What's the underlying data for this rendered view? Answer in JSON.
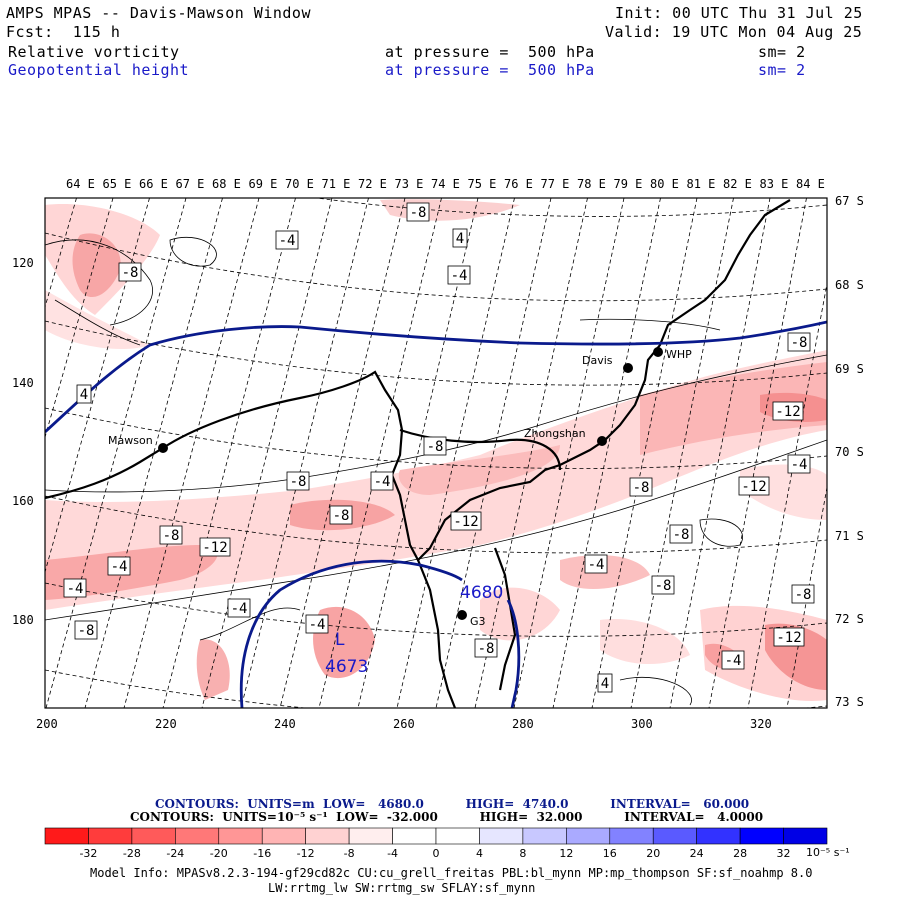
{
  "header": {
    "title": "AMPS MPAS -- Davis-Mawson Window",
    "forecast": "Fcst:  115 h",
    "init": "Init: 00 UTC Thu 31 Jul 25",
    "valid": "Valid: 19 UTC Mon 04 Aug 25",
    "field1": {
      "name": "Relative vorticity",
      "level": "at pressure =  500 hPa",
      "smooth": "sm= 2"
    },
    "field2": {
      "name": "Geopotential height",
      "level": "at pressure =  500 hPa",
      "smooth": "sm= 2"
    }
  },
  "map": {
    "top_lon_labels": [
      "64 E",
      "65 E",
      "66 E",
      "67 E",
      "68 E",
      "69 E",
      "70 E",
      "71 E",
      "72 E",
      "73 E",
      "74 E",
      "75 E",
      "76 E",
      "77 E",
      "78 E",
      "79 E",
      "80 E",
      "81 E",
      "82 E",
      "83 E",
      "84 E"
    ],
    "right_lat_labels": [
      "67 S",
      "68 S",
      "69 S",
      "70 S",
      "71 S",
      "72 S",
      "73 S"
    ],
    "left_grid_labels": [
      "120",
      "140",
      "160",
      "180"
    ],
    "bottom_grid_labels": [
      "200",
      "220",
      "240",
      "260",
      "280",
      "300",
      "320"
    ],
    "stations": [
      {
        "name": "Davis"
      },
      {
        "name": "WHP"
      },
      {
        "name": "Mawson"
      },
      {
        "name": "Zhongshan"
      },
      {
        "name": "G3"
      }
    ],
    "height_labels": [
      {
        "text": "4680"
      },
      {
        "text": "L"
      },
      {
        "text": "4673"
      }
    ],
    "vorticity_labels": [
      "-8",
      "-4",
      "4",
      "-4",
      "-8",
      "4",
      "-8",
      "-12",
      "-8",
      "-4",
      "-8",
      "-4",
      "-8",
      "-12",
      "-8",
      "-12",
      "-8",
      "-12",
      "-8",
      "-4",
      "-4",
      "-4",
      "-8",
      "-8",
      "-4",
      "-4",
      "-8",
      "-12",
      "-8",
      "-4",
      "4"
    ]
  },
  "legend": {
    "contours_height": "CONTOURS:  UNITS=m  LOW=   4680.0          HIGH=  4740.0          INTERVAL=   60.000",
    "contours_vort": "CONTOURS:  UNITS=10⁻⁵ s⁻¹  LOW=  -32.000          HIGH=  32.000          INTERVAL=   4.0000",
    "colorbar_colors": [
      "#ff1a1a",
      "#ff3c3c",
      "#ff5a5a",
      "#ff7878",
      "#ff9696",
      "#ffb4b4",
      "#ffd2d2",
      "#ffeeee",
      "#ffffff",
      "#ffffff",
      "#e6e6ff",
      "#c8c8ff",
      "#aaaaff",
      "#8282ff",
      "#5a5aff",
      "#3232ff",
      "#0000ff",
      "#0000e6"
    ],
    "colorbar_ticks": [
      "-32",
      "-28",
      "-24",
      "-20",
      "-16",
      "-12",
      "-8",
      "-4",
      "0",
      "4",
      "8",
      "12",
      "16",
      "20",
      "24",
      "28",
      "32"
    ],
    "unit_label": "10⁻⁵ s⁻¹"
  },
  "model_info": {
    "line1": "Model Info: MPASv8.2.3-194-gf29cd82c CU:cu_grell_freitas PBL:bl_mynn MP:mp_thompson SF:sf_noahmp 8.0",
    "line2": "LW:rrtmg_lw SW:rrtmg_sw SFLAY:sf_mynn"
  },
  "colors": {
    "height_contour": "#0a1a8c",
    "coast": "#000000",
    "vort_light": "#ffe4e4",
    "vort_mid": "#ffbcbc",
    "vort_strong": "#f59090"
  }
}
